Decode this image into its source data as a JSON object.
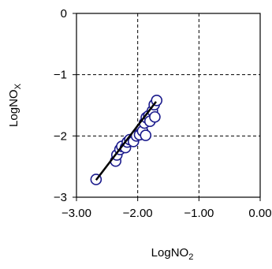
{
  "chart_data": {
    "type": "scatter",
    "xlabel": "LogNO",
    "xlabel_sub": "2",
    "ylabel": "LogNO",
    "ylabel_sub": "X",
    "xlim": [
      -3.0,
      0.0
    ],
    "ylim": [
      -3.0,
      0.0
    ],
    "x_ticks": [
      -3.0,
      -2.0,
      -1.0,
      0.0
    ],
    "x_tick_labels": [
      "−3.00",
      "−2.00",
      "−1.00",
      "0.00"
    ],
    "y_ticks": [
      0,
      -1,
      -2,
      -3
    ],
    "y_tick_labels": [
      "0",
      "−1",
      "−2",
      "−3"
    ],
    "grid": "dashed",
    "legend": "none",
    "marker_color": "#1a1a8c",
    "fit_line_color": "#000000",
    "points": [
      {
        "x": -2.68,
        "y": -2.71
      },
      {
        "x": -2.36,
        "y": -2.41
      },
      {
        "x": -2.34,
        "y": -2.31
      },
      {
        "x": -2.29,
        "y": -2.22
      },
      {
        "x": -2.26,
        "y": -2.17
      },
      {
        "x": -2.2,
        "y": -2.19
      },
      {
        "x": -2.17,
        "y": -2.1
      },
      {
        "x": -2.13,
        "y": -2.06
      },
      {
        "x": -2.07,
        "y": -2.09
      },
      {
        "x": -2.02,
        "y": -2.0
      },
      {
        "x": -1.97,
        "y": -1.98
      },
      {
        "x": -1.94,
        "y": -1.88
      },
      {
        "x": -1.92,
        "y": -1.92
      },
      {
        "x": -1.89,
        "y": -1.79
      },
      {
        "x": -1.87,
        "y": -1.99
      },
      {
        "x": -1.86,
        "y": -1.7
      },
      {
        "x": -1.82,
        "y": -1.67
      },
      {
        "x": -1.8,
        "y": -1.76
      },
      {
        "x": -1.76,
        "y": -1.59
      },
      {
        "x": -1.72,
        "y": -1.69
      },
      {
        "x": -1.73,
        "y": -1.49
      },
      {
        "x": -1.69,
        "y": -1.42
      }
    ],
    "fit_line": [
      [
        -2.68,
        -2.72
      ],
      [
        -1.7,
        -1.44
      ]
    ]
  }
}
